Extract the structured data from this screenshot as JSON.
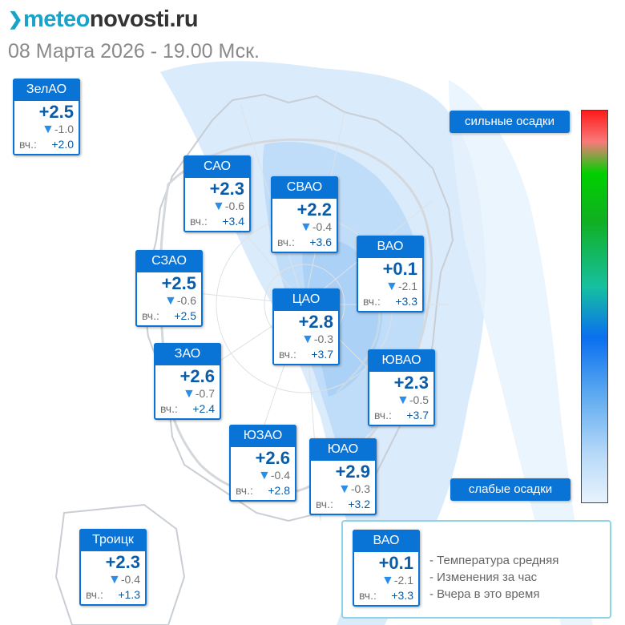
{
  "logo": {
    "part1": "meteo",
    "part2": "novosti",
    "part3": ".ru"
  },
  "date": "08 Марта 2026 - 19.00 Мск.",
  "yesterday_label": "вч.:",
  "scale": {
    "top": "сильные осадки",
    "bottom": "слабые осадки"
  },
  "districts": [
    {
      "name": "ЗелАО",
      "temp": "+2.5",
      "change": "-1.0",
      "yesterday": "+2.0"
    },
    {
      "name": "САО",
      "temp": "+2.3",
      "change": "-0.6",
      "yesterday": "+3.4"
    },
    {
      "name": "СВАО",
      "temp": "+2.2",
      "change": "-0.4",
      "yesterday": "+3.6"
    },
    {
      "name": "ВАО",
      "temp": "+0.1",
      "change": "-2.1",
      "yesterday": "+3.3"
    },
    {
      "name": "СЗАО",
      "temp": "+2.5",
      "change": "-0.6",
      "yesterday": "+2.5"
    },
    {
      "name": "ЦАО",
      "temp": "+2.8",
      "change": "-0.3",
      "yesterday": "+3.7"
    },
    {
      "name": "ЗАО",
      "temp": "+2.6",
      "change": "-0.7",
      "yesterday": "+2.4"
    },
    {
      "name": "ЮВАО",
      "temp": "+2.3",
      "change": "-0.5",
      "yesterday": "+3.7"
    },
    {
      "name": "ЮЗАО",
      "temp": "+2.6",
      "change": "-0.4",
      "yesterday": "+2.8"
    },
    {
      "name": "ЮАО",
      "temp": "+2.9",
      "change": "-0.3",
      "yesterday": "+3.2"
    },
    {
      "name": "Троицк",
      "temp": "+2.3",
      "change": "-0.4",
      "yesterday": "+1.3"
    }
  ],
  "legend": {
    "sample": {
      "name": "ВАО",
      "temp": "+0.1",
      "change": "-2.1",
      "yesterday": "+3.3"
    },
    "items": [
      "- Температура средняя",
      "- Изменения за час",
      "- Вчера в это время"
    ]
  },
  "colors": {
    "card_header": "#0a74d6",
    "temp_text": "#0a5ca8",
    "logo_accent": "#1aa3c9",
    "precip_light": "#cfe6fb"
  }
}
